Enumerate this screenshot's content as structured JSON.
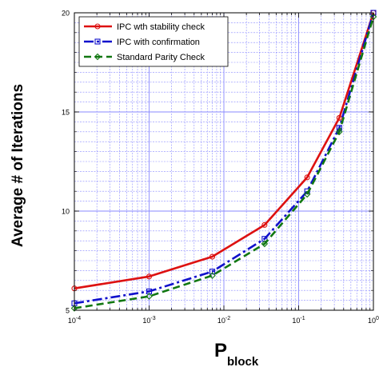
{
  "chart_data": {
    "type": "line",
    "xlabel_main": "P",
    "xlabel_sub": "block",
    "ylabel": "Average # of Iterations",
    "x_scale": "log",
    "xlim": [
      0.0001,
      1
    ],
    "ylim": [
      5,
      20
    ],
    "grid": true,
    "legend_position": "top-left",
    "x_ticks": [
      {
        "value": 0.0001,
        "base": "10",
        "exp": "-4"
      },
      {
        "value": 0.001,
        "base": "10",
        "exp": "-3"
      },
      {
        "value": 0.01,
        "base": "10",
        "exp": "-2"
      },
      {
        "value": 0.1,
        "base": "10",
        "exp": "-1"
      },
      {
        "value": 1,
        "base": "10",
        "exp": "0"
      }
    ],
    "y_ticks": [
      {
        "value": 5,
        "label": "5"
      },
      {
        "value": 10,
        "label": "10"
      },
      {
        "value": 15,
        "label": "15"
      },
      {
        "value": 20,
        "label": "20"
      }
    ],
    "series": [
      {
        "name": "IPC wth stability check",
        "color": "#dd1111",
        "dash": "solid",
        "marker": "circle",
        "x": [
          0.0001,
          0.001,
          0.007,
          0.035,
          0.13,
          0.35,
          1
        ],
        "y": [
          6.1,
          6.7,
          7.7,
          9.3,
          11.7,
          14.7,
          20.0
        ]
      },
      {
        "name": "IPC with confirmation",
        "color": "#1111cc",
        "dash": "dashdot",
        "marker": "square",
        "x": [
          0.0001,
          0.001,
          0.007,
          0.035,
          0.13,
          0.35,
          1
        ],
        "y": [
          5.35,
          5.95,
          6.95,
          8.6,
          11.0,
          14.2,
          20.0
        ]
      },
      {
        "name": "Standard Parity Check",
        "color": "#117711",
        "dash": "dashed",
        "marker": "diamond",
        "x": [
          0.0001,
          0.001,
          0.007,
          0.035,
          0.13,
          0.35,
          1
        ],
        "y": [
          5.1,
          5.7,
          6.75,
          8.35,
          10.85,
          14.0,
          19.8
        ]
      }
    ]
  }
}
